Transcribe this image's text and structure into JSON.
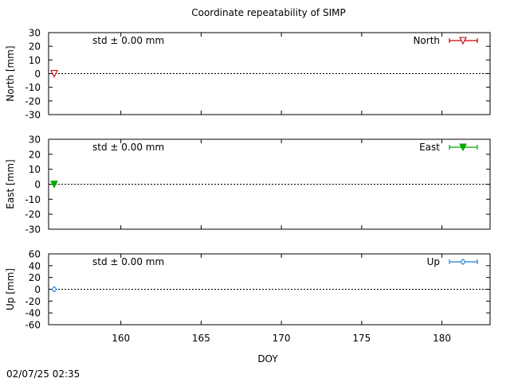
{
  "title": "Coordinate repeatability of SIMP",
  "timestamp": "02/07/25 02:35",
  "xlabel": "DOY",
  "chart_data": [
    {
      "type": "scatter",
      "key": "north",
      "ylabel": "North [mm]",
      "legend": "North",
      "legend_position": "top-right",
      "std_label": "std ± 0.00 mm",
      "color": "#cc0000",
      "marker": "triangle-down-open",
      "ylim": [
        -30,
        30
      ],
      "yticks": [
        -30,
        -20,
        -10,
        0,
        10,
        20,
        30
      ],
      "xlim": [
        155.5,
        183
      ],
      "points": [
        {
          "x": 155.5,
          "y": 0
        }
      ],
      "zero_line": true
    },
    {
      "type": "scatter",
      "key": "east",
      "ylabel": "East [mm]",
      "legend": "East",
      "legend_position": "top-right",
      "std_label": "std ± 0.00 mm",
      "color": "#00aa00",
      "marker": "triangle-down-filled",
      "ylim": [
        -30,
        30
      ],
      "yticks": [
        -30,
        -20,
        -10,
        0,
        10,
        20,
        30
      ],
      "xlim": [
        155.5,
        183
      ],
      "points": [
        {
          "x": 155.5,
          "y": 0
        }
      ],
      "zero_line": true
    },
    {
      "type": "scatter",
      "key": "up",
      "ylabel": "Up [mm]",
      "legend": "Up",
      "legend_position": "top-right",
      "std_label": "std ± 0.00 mm",
      "color": "#1e7fd8",
      "marker": "diamond-open",
      "ylim": [
        -60,
        60
      ],
      "yticks": [
        -60,
        -40,
        -20,
        0,
        20,
        40,
        60
      ],
      "xlim": [
        155.5,
        183
      ],
      "xticks": [
        160,
        165,
        170,
        175,
        180
      ],
      "points": [
        {
          "x": 155.5,
          "y": 0
        }
      ],
      "zero_line": true
    }
  ]
}
